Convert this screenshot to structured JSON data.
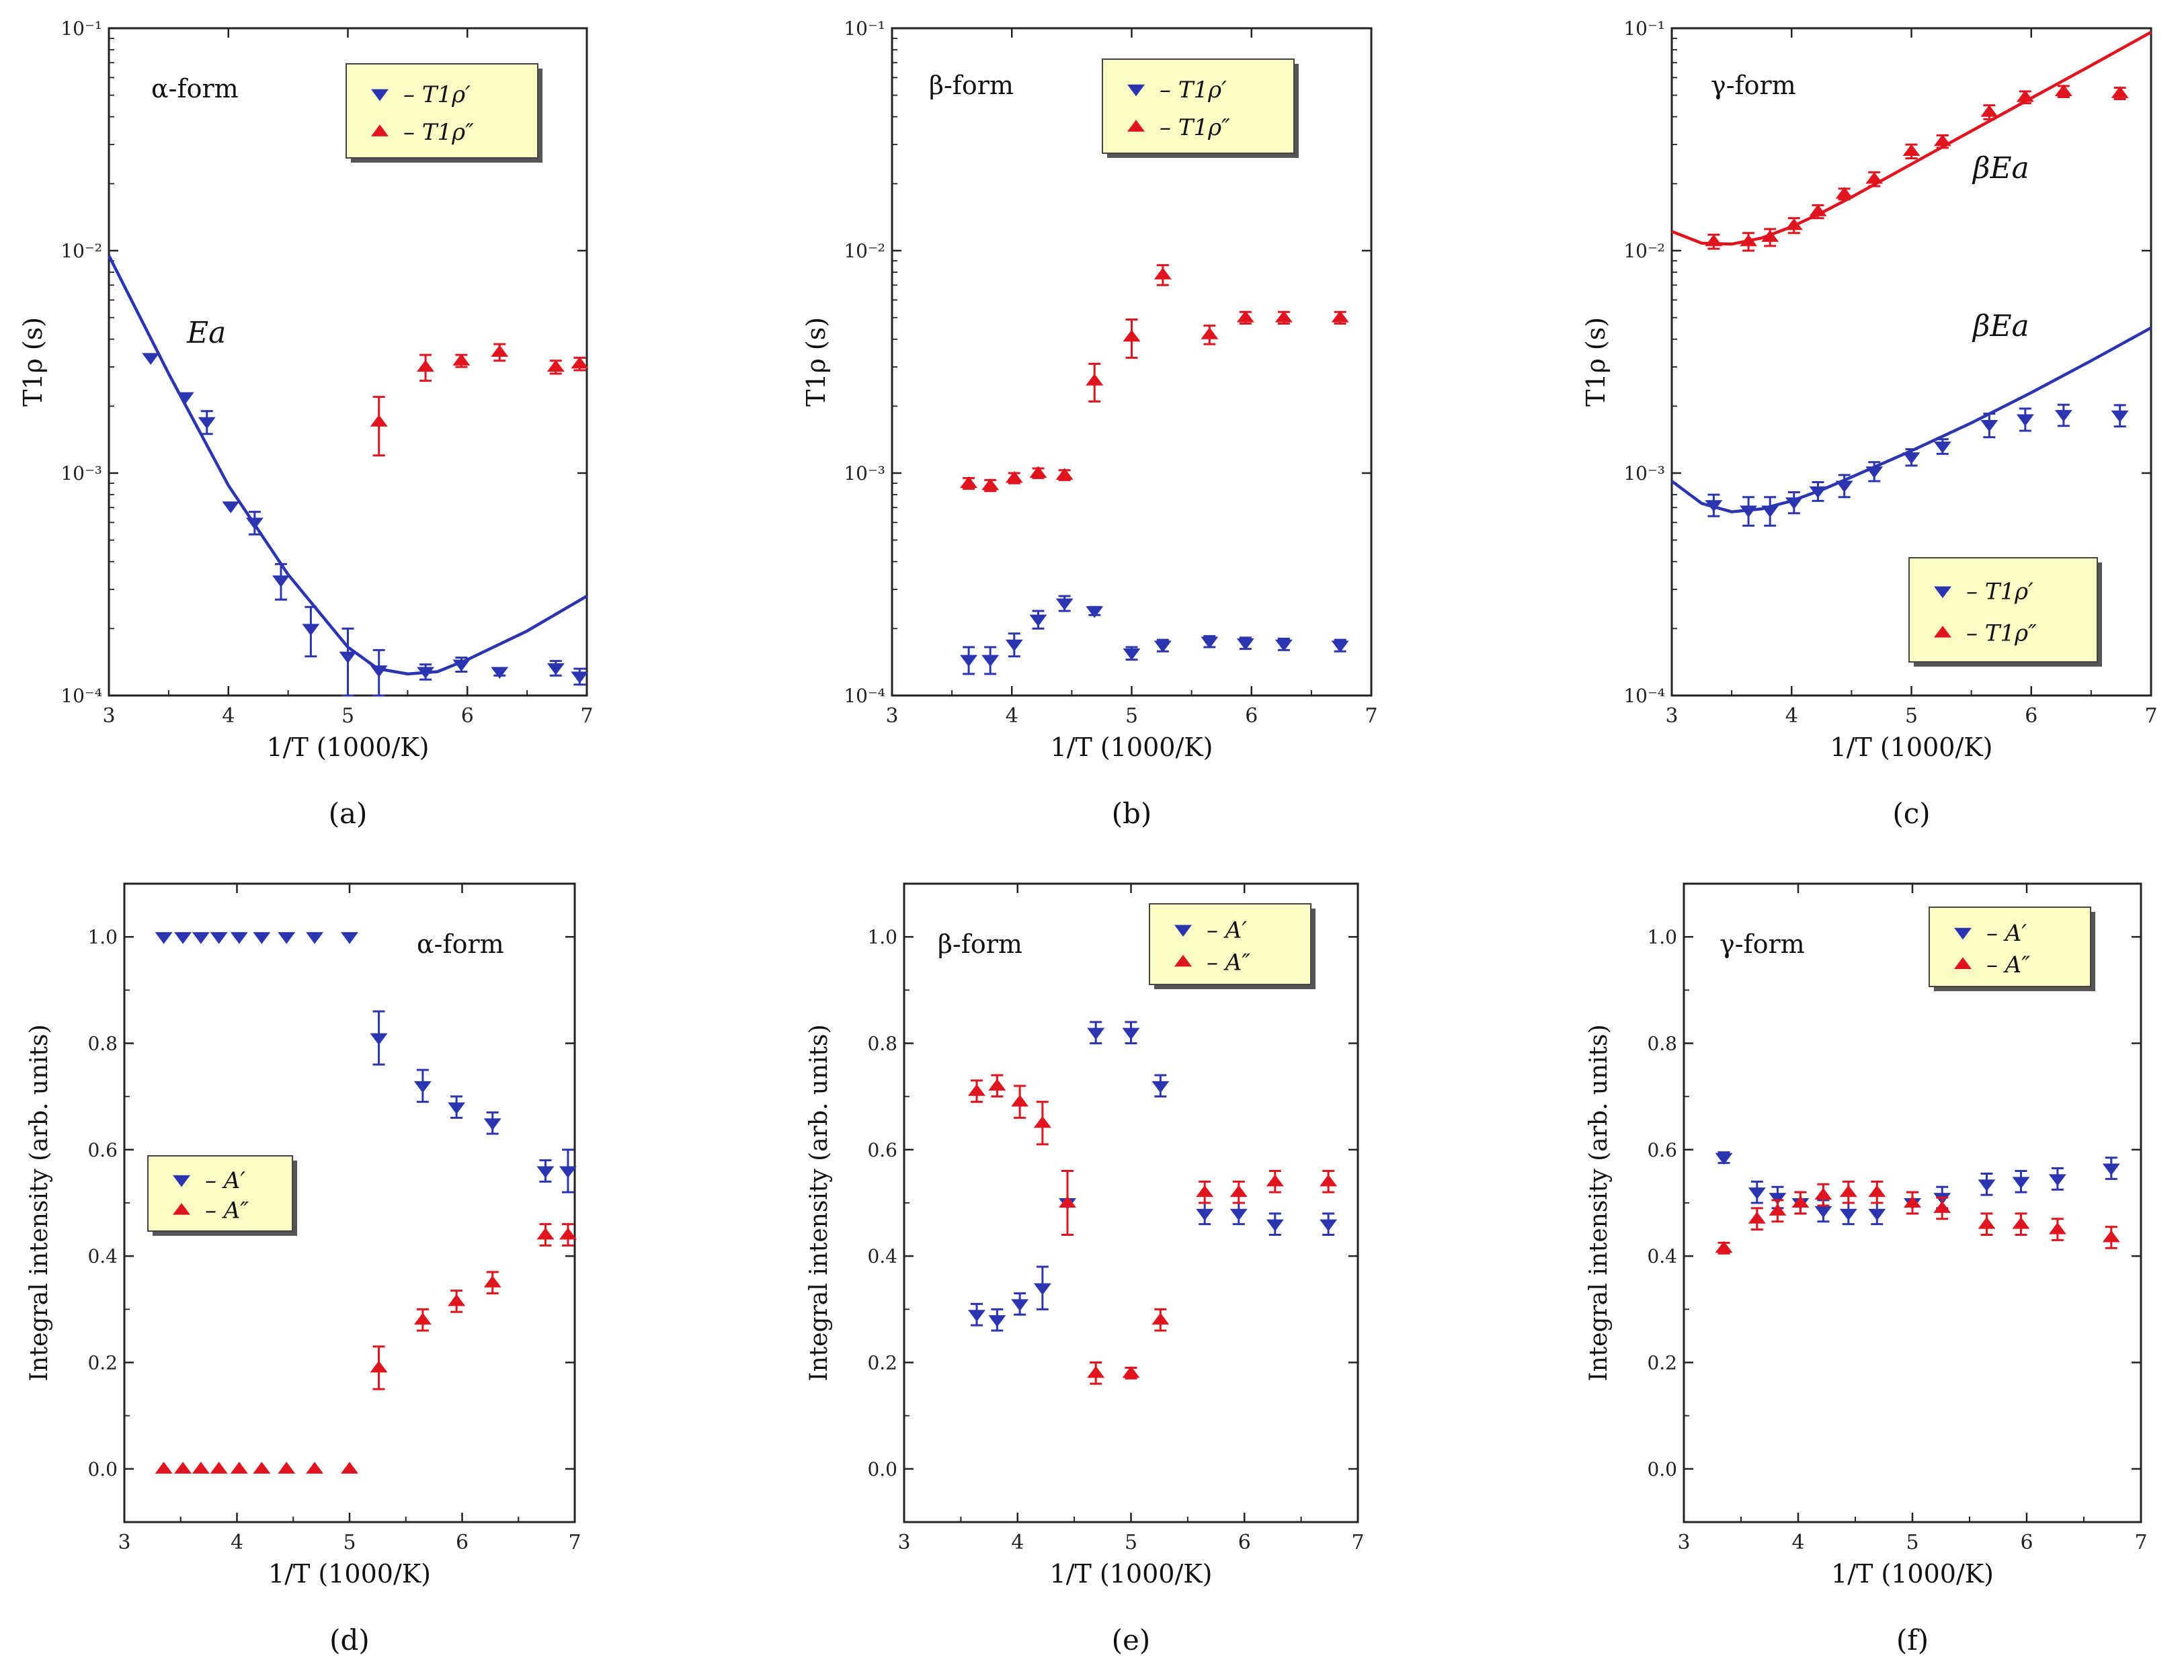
{
  "figure": {
    "xlabel": "1/T (1000/K)",
    "ylabel_t1": "T1ρ (s)",
    "ylabel_int": "Integral intensity (arb. units)",
    "colors": {
      "blue": "#2b35b0",
      "red": "#e0141e",
      "legend_bg": "#fdfcc4"
    }
  },
  "chart_data": [
    {
      "id": "a",
      "type": "scatter",
      "panel_label": "(a)",
      "label": "α-form",
      "yscale": "log",
      "xlim": [
        3,
        7
      ],
      "ylim": [
        0.0001,
        0.1
      ],
      "xticks": [
        3,
        4,
        5,
        6,
        7
      ],
      "yticks": [
        0.0001,
        0.001,
        0.01,
        0.1
      ],
      "ytick_labels": [
        "10⁻⁴",
        "10⁻³",
        "10⁻²",
        "10⁻¹"
      ],
      "legend": [
        "– T1ρ′",
        "– T1ρ″"
      ],
      "series": [
        {
          "name": "T1ρ′",
          "marker": "down",
          "color": "blue",
          "x": [
            3.35,
            3.64,
            3.82,
            4.02,
            4.22,
            4.44,
            4.69,
            5.0,
            5.26,
            5.65,
            5.95,
            6.27,
            6.74,
            6.94
          ],
          "y": [
            0.0033,
            0.0022,
            0.0017,
            0.00071,
            0.0006,
            0.00033,
            0.0002,
            0.00015,
            0.00013,
            0.000128,
            0.000138,
            0.000128,
            0.000133,
            0.000122
          ],
          "err": [
            0,
            0,
            0.0002,
            0,
            7e-05,
            6e-05,
            5e-05,
            5e-05,
            3e-05,
            1e-05,
            1e-05,
            5e-06,
            1e-05,
            1e-05
          ]
        },
        {
          "name": "T1ρ″",
          "marker": "up",
          "color": "red",
          "x": [
            5.26,
            5.65,
            5.95,
            6.27,
            6.74,
            6.94
          ],
          "y": [
            0.0017,
            0.003,
            0.0032,
            0.0035,
            0.003,
            0.0031
          ],
          "err": [
            0.0005,
            0.0004,
            0.0002,
            0.0003,
            0.0002,
            0.0002
          ]
        }
      ],
      "fits": [
        {
          "name": "Ea",
          "color": "blue",
          "x": [
            3.0,
            3.5,
            4.0,
            4.5,
            5.0,
            5.25,
            5.5,
            5.75,
            6.0,
            6.5,
            7.0
          ],
          "y": [
            0.0095,
            0.0028,
            0.00088,
            0.00035,
            0.000165,
            0.000132,
            0.000125,
            0.000128,
            0.000145,
            0.000195,
            0.00028
          ]
        }
      ],
      "annotations": [
        "Ea"
      ]
    },
    {
      "id": "b",
      "type": "scatter",
      "panel_label": "(b)",
      "label": "β-form",
      "yscale": "log",
      "xlim": [
        3,
        7
      ],
      "ylim": [
        0.0001,
        0.1
      ],
      "xticks": [
        3,
        4,
        5,
        6,
        7
      ],
      "yticks": [
        0.0001,
        0.001,
        0.01,
        0.1
      ],
      "ytick_labels": [
        "10⁻⁴",
        "10⁻³",
        "10⁻²",
        "10⁻¹"
      ],
      "legend": [
        "– T1ρ′",
        "– T1ρ″"
      ],
      "series": [
        {
          "name": "T1ρ′",
          "marker": "down",
          "color": "blue",
          "x": [
            3.64,
            3.82,
            4.02,
            4.22,
            4.44,
            4.69,
            5.0,
            5.26,
            5.65,
            5.95,
            6.27,
            6.74
          ],
          "y": [
            0.000145,
            0.000145,
            0.00017,
            0.00022,
            0.00026,
            0.00024,
            0.000155,
            0.000168,
            0.000175,
            0.000172,
            0.00017,
            0.000168
          ],
          "err": [
            2e-05,
            2e-05,
            2e-05,
            2e-05,
            2e-05,
            1e-05,
            1e-05,
            1e-05,
            1e-05,
            1e-05,
            1e-05,
            1e-05
          ]
        },
        {
          "name": "T1ρ″",
          "marker": "up",
          "color": "red",
          "x": [
            3.64,
            3.82,
            4.02,
            4.22,
            4.44,
            4.69,
            5.0,
            5.26,
            5.65,
            5.95,
            6.27,
            6.74
          ],
          "y": [
            0.0009,
            0.00088,
            0.00095,
            0.001,
            0.00098,
            0.0026,
            0.0041,
            0.0078,
            0.0042,
            0.005,
            0.005,
            0.005
          ],
          "err": [
            5e-05,
            5e-05,
            5e-05,
            5e-05,
            5e-05,
            0.0005,
            0.0008,
            0.0008,
            0.0004,
            0.0003,
            0.0003,
            0.0003
          ]
        }
      ],
      "fits": [],
      "annotations": []
    },
    {
      "id": "c",
      "type": "scatter",
      "panel_label": "(c)",
      "label": "γ-form",
      "yscale": "log",
      "xlim": [
        3,
        7
      ],
      "ylim": [
        0.0001,
        0.1
      ],
      "xticks": [
        3,
        4,
        5,
        6,
        7
      ],
      "yticks": [
        0.0001,
        0.001,
        0.01,
        0.1
      ],
      "ytick_labels": [
        "10⁻⁴",
        "10⁻³",
        "10⁻²",
        "10⁻¹"
      ],
      "legend": [
        "– T1ρ′",
        "– T1ρ″"
      ],
      "series": [
        {
          "name": "T1ρ′",
          "marker": "down",
          "color": "blue",
          "x": [
            3.35,
            3.64,
            3.82,
            4.02,
            4.22,
            4.44,
            4.69,
            5.0,
            5.26,
            5.65,
            5.95,
            6.27,
            6.74
          ],
          "y": [
            0.00072,
            0.00068,
            0.00068,
            0.00074,
            0.00083,
            0.00088,
            0.00102,
            0.00118,
            0.00132,
            0.00165,
            0.00175,
            0.00183,
            0.00182
          ],
          "err": [
            8e-05,
            0.0001,
            0.0001,
            8e-05,
            8e-05,
            0.0001,
            0.0001,
            0.0001,
            0.0001,
            0.0002,
            0.0002,
            0.0002,
            0.0002
          ]
        },
        {
          "name": "T1ρ″",
          "marker": "up",
          "color": "red",
          "x": [
            3.35,
            3.64,
            3.82,
            4.02,
            4.22,
            4.44,
            4.69,
            5.0,
            5.26,
            5.65,
            5.95,
            6.27,
            6.74
          ],
          "y": [
            0.011,
            0.011,
            0.0115,
            0.013,
            0.015,
            0.018,
            0.021,
            0.028,
            0.031,
            0.042,
            0.049,
            0.052,
            0.051
          ],
          "err": [
            0.0008,
            0.001,
            0.001,
            0.001,
            0.001,
            0.001,
            0.0015,
            0.002,
            0.002,
            0.003,
            0.003,
            0.003,
            0.003
          ]
        }
      ],
      "fits": [
        {
          "name": "βEa red",
          "color": "red",
          "x": [
            3.0,
            3.25,
            3.5,
            3.75,
            4.0,
            4.25,
            4.5,
            5.0,
            5.5,
            6.0,
            6.5,
            7.0
          ],
          "y": [
            0.0122,
            0.0108,
            0.0107,
            0.0114,
            0.0128,
            0.0148,
            0.0174,
            0.0245,
            0.0345,
            0.0485,
            0.068,
            0.096
          ]
        },
        {
          "name": "βEa blue",
          "color": "blue",
          "x": [
            3.0,
            3.25,
            3.5,
            3.75,
            4.0,
            4.25,
            4.5,
            5.0,
            5.5,
            6.0,
            6.5,
            7.0
          ],
          "y": [
            0.00092,
            0.00073,
            0.00067,
            0.00069,
            0.00075,
            0.00084,
            0.00096,
            0.00126,
            0.00168,
            0.0023,
            0.0032,
            0.0045
          ]
        }
      ],
      "annotations": [
        "βEa",
        "βEa"
      ]
    },
    {
      "id": "d",
      "type": "scatter",
      "panel_label": "(d)",
      "label": "α-form",
      "yscale": "linear",
      "xlim": [
        3,
        7
      ],
      "ylim": [
        -0.1,
        1.1
      ],
      "xticks": [
        3,
        4,
        5,
        6,
        7
      ],
      "yticks": [
        0.0,
        0.2,
        0.4,
        0.6,
        0.8,
        1.0
      ],
      "ytick_labels": [
        "0.0",
        "0.2",
        "0.4",
        "0.6",
        "0.8",
        "1.0"
      ],
      "legend": [
        "– A′",
        "– A″"
      ],
      "series": [
        {
          "name": "A′",
          "marker": "down",
          "color": "blue",
          "x": [
            3.35,
            3.52,
            3.68,
            3.84,
            4.02,
            4.22,
            4.44,
            4.69,
            5.0,
            5.26,
            5.65,
            5.95,
            6.27,
            6.74,
            6.94
          ],
          "y": [
            1.0,
            1.0,
            1.0,
            1.0,
            1.0,
            1.0,
            1.0,
            1.0,
            1.0,
            0.81,
            0.72,
            0.68,
            0.65,
            0.56,
            0.56
          ],
          "err": [
            0,
            0,
            0,
            0,
            0,
            0,
            0,
            0,
            0,
            0.05,
            0.03,
            0.02,
            0.02,
            0.02,
            0.04
          ]
        },
        {
          "name": "A″",
          "marker": "up",
          "color": "red",
          "x": [
            3.35,
            3.52,
            3.68,
            3.84,
            4.02,
            4.22,
            4.44,
            4.69,
            5.0,
            5.26,
            5.65,
            5.95,
            6.27,
            6.74,
            6.94
          ],
          "y": [
            0.0,
            0.0,
            0.0,
            0.0,
            0.0,
            0.0,
            0.0,
            0.0,
            0.0,
            0.19,
            0.28,
            0.315,
            0.35,
            0.44,
            0.44
          ],
          "err": [
            0,
            0,
            0,
            0,
            0,
            0,
            0,
            0,
            0,
            0.04,
            0.02,
            0.02,
            0.02,
            0.02,
            0.02
          ]
        }
      ],
      "fits": [],
      "annotations": []
    },
    {
      "id": "e",
      "type": "scatter",
      "panel_label": "(e)",
      "label": "β-form",
      "yscale": "linear",
      "xlim": [
        3,
        7
      ],
      "ylim": [
        -0.1,
        1.1
      ],
      "xticks": [
        3,
        4,
        5,
        6,
        7
      ],
      "yticks": [
        0.0,
        0.2,
        0.4,
        0.6,
        0.8,
        1.0
      ],
      "ytick_labels": [
        "0.0",
        "0.2",
        "0.4",
        "0.6",
        "0.8",
        "1.0"
      ],
      "legend": [
        "– A′",
        "– A″"
      ],
      "series": [
        {
          "name": "A′",
          "marker": "down",
          "color": "blue",
          "x": [
            3.64,
            3.82,
            4.02,
            4.22,
            4.44,
            4.69,
            5.0,
            5.26,
            5.65,
            5.95,
            6.27,
            6.74
          ],
          "y": [
            0.29,
            0.28,
            0.31,
            0.34,
            0.5,
            0.82,
            0.82,
            0.72,
            0.48,
            0.48,
            0.46,
            0.46
          ],
          "err": [
            0.02,
            0.02,
            0.02,
            0.04,
            0.06,
            0.02,
            0.02,
            0.02,
            0.02,
            0.02,
            0.02,
            0.02
          ]
        },
        {
          "name": "A″",
          "marker": "up",
          "color": "red",
          "x": [
            3.64,
            3.82,
            4.02,
            4.22,
            4.44,
            4.69,
            5.0,
            5.26,
            5.65,
            5.95,
            6.27,
            6.74
          ],
          "y": [
            0.71,
            0.72,
            0.69,
            0.65,
            0.5,
            0.18,
            0.18,
            0.28,
            0.52,
            0.52,
            0.54,
            0.54
          ],
          "err": [
            0.02,
            0.02,
            0.03,
            0.04,
            0.06,
            0.02,
            0.01,
            0.02,
            0.02,
            0.02,
            0.02,
            0.02
          ]
        }
      ],
      "fits": [],
      "annotations": []
    },
    {
      "id": "f",
      "type": "scatter",
      "panel_label": "(f)",
      "label": "γ-form",
      "yscale": "linear",
      "xlim": [
        3,
        7
      ],
      "ylim": [
        -0.1,
        1.1
      ],
      "xticks": [
        3,
        4,
        5,
        6,
        7
      ],
      "yticks": [
        0.0,
        0.2,
        0.4,
        0.6,
        0.8,
        1.0
      ],
      "ytick_labels": [
        "0.0",
        "0.2",
        "0.4",
        "0.6",
        "0.8",
        "1.0"
      ],
      "legend": [
        "– A′",
        "– A″"
      ],
      "series": [
        {
          "name": "A′",
          "marker": "down",
          "color": "blue",
          "x": [
            3.35,
            3.64,
            3.82,
            4.02,
            4.22,
            4.44,
            4.69,
            5.0,
            5.26,
            5.65,
            5.95,
            6.27,
            6.74
          ],
          "y": [
            0.585,
            0.52,
            0.51,
            0.5,
            0.485,
            0.48,
            0.48,
            0.5,
            0.51,
            0.535,
            0.54,
            0.545,
            0.565
          ],
          "err": [
            0.01,
            0.02,
            0.02,
            0.02,
            0.02,
            0.02,
            0.02,
            0.02,
            0.02,
            0.02,
            0.02,
            0.02,
            0.02
          ]
        },
        {
          "name": "A″",
          "marker": "up",
          "color": "red",
          "x": [
            3.35,
            3.64,
            3.82,
            4.02,
            4.22,
            4.44,
            4.69,
            5.0,
            5.26,
            5.65,
            5.95,
            6.27,
            6.74
          ],
          "y": [
            0.415,
            0.47,
            0.485,
            0.5,
            0.515,
            0.52,
            0.52,
            0.5,
            0.49,
            0.46,
            0.46,
            0.45,
            0.435
          ],
          "err": [
            0.01,
            0.02,
            0.02,
            0.02,
            0.02,
            0.02,
            0.02,
            0.02,
            0.02,
            0.02,
            0.02,
            0.02,
            0.02
          ]
        }
      ],
      "fits": [],
      "annotations": []
    }
  ]
}
